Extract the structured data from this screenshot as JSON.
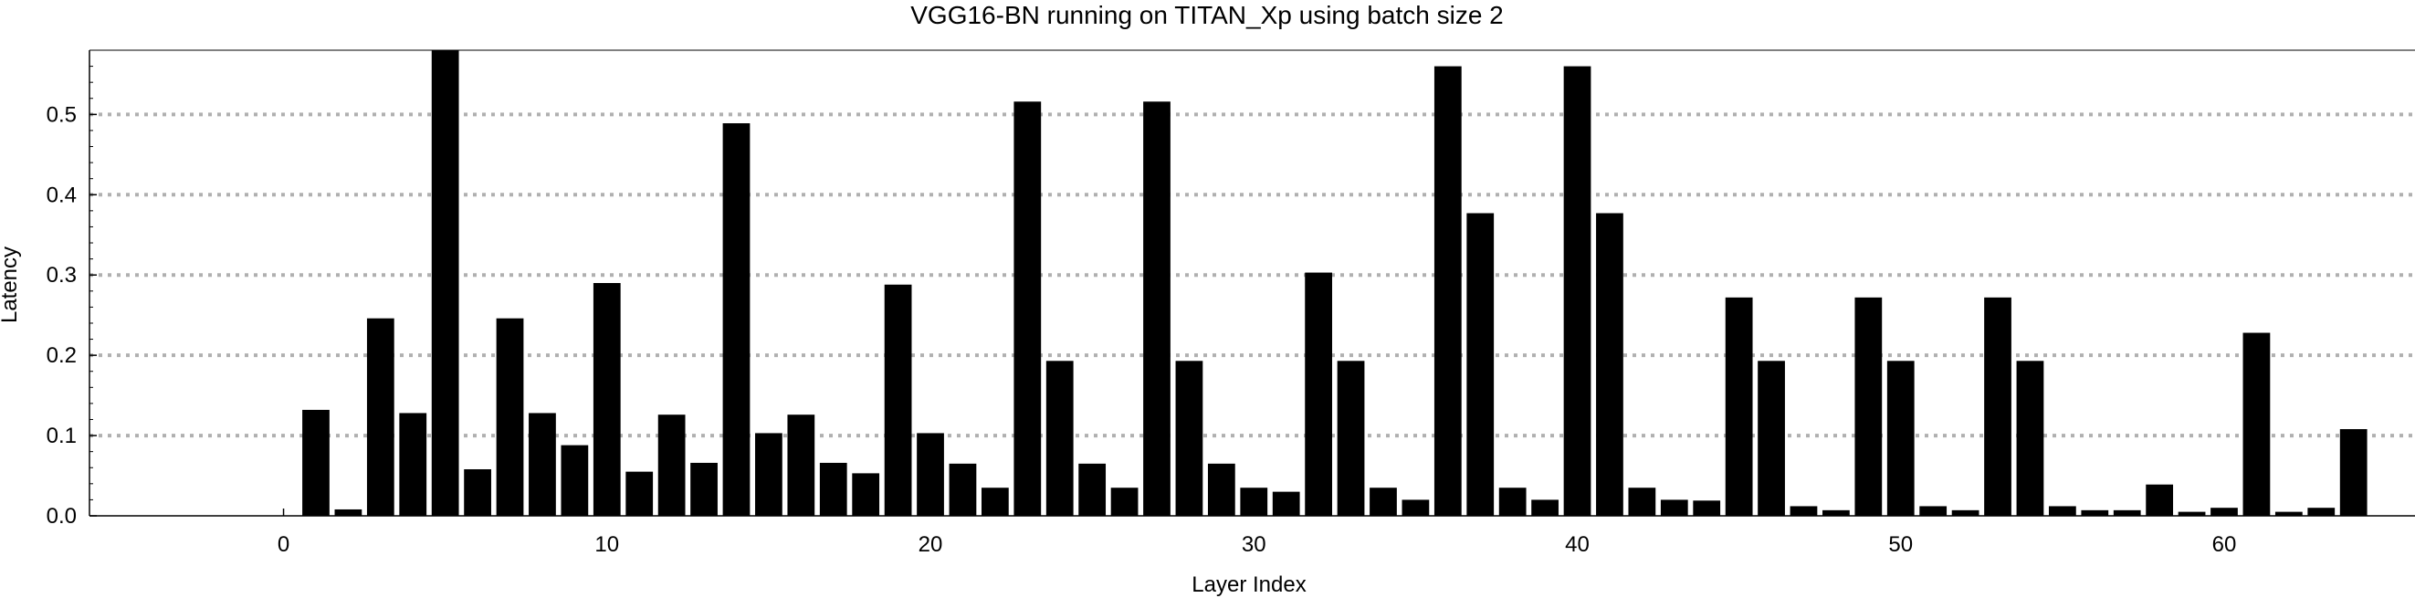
{
  "chart_data": {
    "type": "bar",
    "title": "VGG16-BN running on TITAN_Xp using batch size 2",
    "xlabel": "Layer Index",
    "ylabel": "Latency",
    "xlim": [
      -6,
      65.9
    ],
    "ylim": [
      0,
      0.58
    ],
    "xticks": [
      0,
      10,
      20,
      30,
      40,
      50,
      60
    ],
    "yticks": [
      0.0,
      0.1,
      0.2,
      0.3,
      0.4,
      0.5
    ],
    "grid": "horizontal dotted",
    "colors": {
      "bar": "#000000",
      "grid": "#b0b0b0",
      "axis": "#000000"
    },
    "x": [
      1,
      2,
      3,
      4,
      5,
      6,
      7,
      8,
      9,
      10,
      11,
      12,
      13,
      14,
      15,
      16,
      17,
      18,
      19,
      20,
      21,
      22,
      23,
      24,
      25,
      26,
      27,
      28,
      29,
      30,
      31,
      32,
      33,
      34,
      35,
      36,
      37,
      38,
      39,
      40,
      41,
      42,
      43,
      44,
      45,
      46,
      47,
      48,
      49,
      50,
      51,
      52,
      53,
      54,
      55,
      56,
      57,
      58,
      59,
      60,
      61,
      62,
      63,
      64
    ],
    "values": [
      0.132,
      0.008,
      0.246,
      0.128,
      0.58,
      0.058,
      0.246,
      0.128,
      0.088,
      0.29,
      0.055,
      0.126,
      0.066,
      0.489,
      0.103,
      0.126,
      0.066,
      0.053,
      0.288,
      0.103,
      0.065,
      0.035,
      0.516,
      0.193,
      0.065,
      0.035,
      0.516,
      0.193,
      0.065,
      0.035,
      0.03,
      0.303,
      0.193,
      0.035,
      0.02,
      0.56,
      0.377,
      0.035,
      0.02,
      0.56,
      0.377,
      0.035,
      0.02,
      0.019,
      0.272,
      0.193,
      0.012,
      0.007,
      0.272,
      0.193,
      0.012,
      0.007,
      0.272,
      0.193,
      0.012,
      0.007,
      0.007,
      0.039,
      0.005,
      0.01,
      0.228,
      0.005,
      0.01,
      0.108
    ]
  }
}
